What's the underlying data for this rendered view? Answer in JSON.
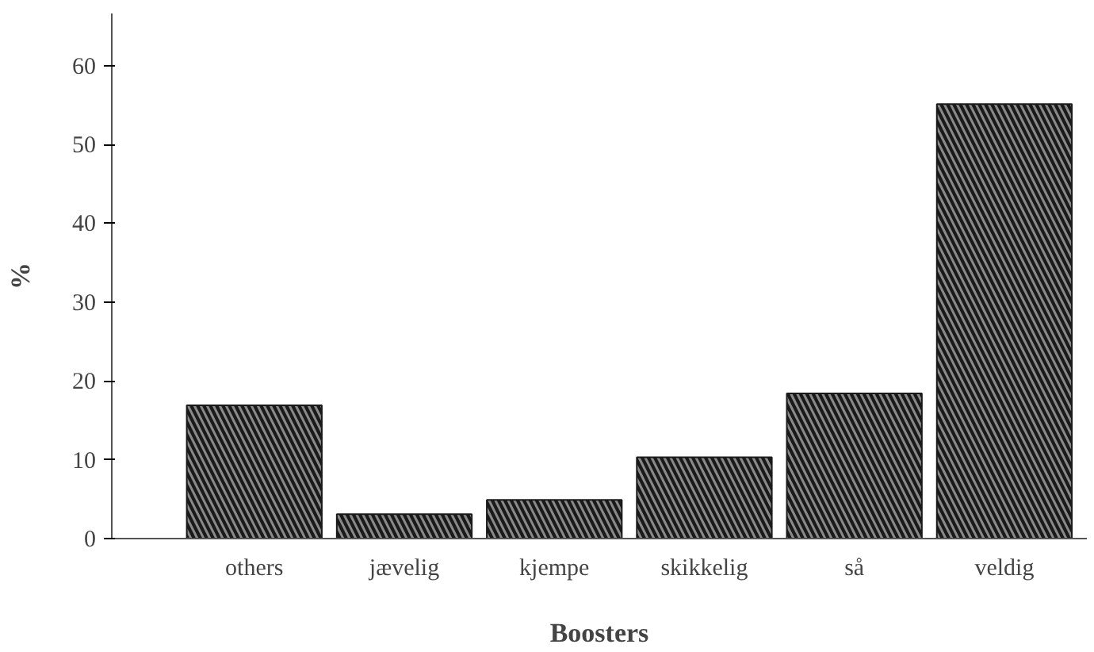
{
  "chart_data": {
    "type": "bar",
    "xlabel": "Boosters",
    "ylabel": "%",
    "categories": [
      "others",
      "jævelig",
      "kjempe",
      "skikkelig",
      "så",
      "veldig"
    ],
    "values": [
      16.9,
      3.1,
      4.9,
      10.3,
      18.4,
      55.1
    ],
    "color": "#1a1a1a",
    "ylim": [
      0,
      66.6
    ],
    "yticks": [
      0,
      10,
      20,
      30,
      40,
      50,
      60
    ],
    "grid": false
  }
}
